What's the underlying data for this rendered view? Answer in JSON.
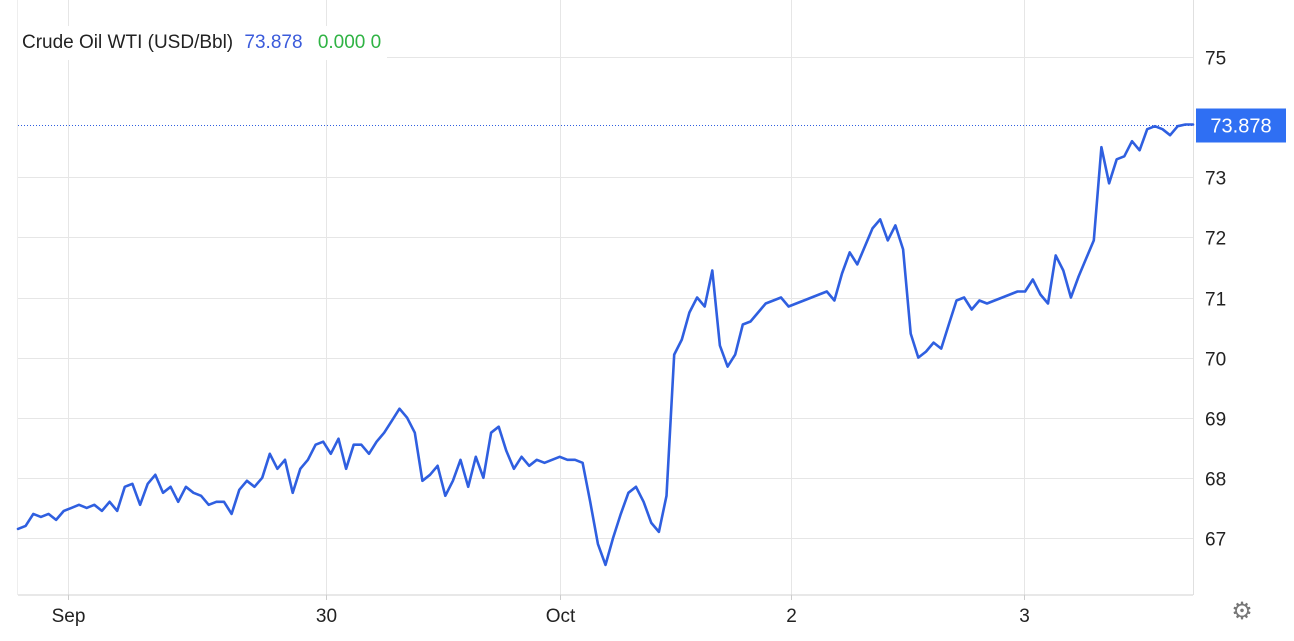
{
  "legend": {
    "name": "Crude Oil WTI (USD/Bbl)",
    "price": "73.878",
    "change": "0.000 0",
    "price_color": "#3b5bdb",
    "change_color": "#2fb344"
  },
  "colors": {
    "line": "#2f5fe0",
    "price_tag_bg": "#2f6ff3",
    "price_tag_text": "#ffffff",
    "grid": "#e6e6e6",
    "axis_text": "#222222"
  },
  "settings_icon": "gear-icon",
  "chart_data": {
    "type": "line",
    "title": "Crude Oil WTI (USD/Bbl)",
    "xlabel": "",
    "ylabel": "",
    "x_ticks": [
      "Sep",
      "30",
      "Oct",
      "2",
      "3"
    ],
    "y_ticks": [
      67,
      68,
      69,
      70,
      71,
      72,
      73,
      75
    ],
    "ylim": [
      66.05,
      75.95
    ],
    "grid": true,
    "y_axis_side": "right",
    "last_value": 73.878,
    "last_value_label": "73.878",
    "series": [
      {
        "name": "Crude Oil WTI (USD/Bbl)",
        "values": [
          67.15,
          67.2,
          67.4,
          67.35,
          67.4,
          67.3,
          67.45,
          67.5,
          67.55,
          67.5,
          67.55,
          67.45,
          67.6,
          67.45,
          67.85,
          67.9,
          67.55,
          67.9,
          68.05,
          67.75,
          67.85,
          67.6,
          67.85,
          67.75,
          67.7,
          67.55,
          67.6,
          67.6,
          67.4,
          67.8,
          67.95,
          67.85,
          68.0,
          68.4,
          68.15,
          68.3,
          67.75,
          68.15,
          68.3,
          68.55,
          68.6,
          68.4,
          68.65,
          68.15,
          68.55,
          68.55,
          68.4,
          68.6,
          68.75,
          68.95,
          69.15,
          69.0,
          68.75,
          67.95,
          68.05,
          68.2,
          67.7,
          67.95,
          68.3,
          67.85,
          68.35,
          68.0,
          68.75,
          68.85,
          68.45,
          68.15,
          68.35,
          68.2,
          68.3,
          68.25,
          68.3,
          68.35,
          68.3,
          68.3,
          68.25,
          67.6,
          66.9,
          66.55,
          67.0,
          67.4,
          67.75,
          67.85,
          67.6,
          67.25,
          67.1,
          67.7,
          70.05,
          70.3,
          70.75,
          71.0,
          70.85,
          71.45,
          70.2,
          69.85,
          70.05,
          70.55,
          70.6,
          70.75,
          70.9,
          70.95,
          71.0,
          70.85,
          70.9,
          70.95,
          71.0,
          71.05,
          71.1,
          70.95,
          71.4,
          71.75,
          71.55,
          71.85,
          72.15,
          72.3,
          71.95,
          72.2,
          71.8,
          70.4,
          70.0,
          70.1,
          70.25,
          70.15,
          70.55,
          70.95,
          71.0,
          70.8,
          70.95,
          70.9,
          70.95,
          71.0,
          71.05,
          71.1,
          71.1,
          71.3,
          71.05,
          70.9,
          71.7,
          71.45,
          71.0,
          71.35,
          71.65,
          71.95,
          73.5,
          72.9,
          73.3,
          73.35,
          73.6,
          73.45,
          73.8,
          73.85,
          73.8,
          73.7,
          73.85,
          73.878,
          73.878
        ]
      }
    ]
  }
}
